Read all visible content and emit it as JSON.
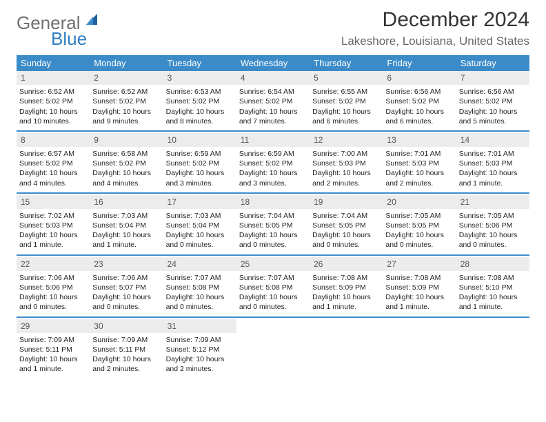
{
  "logo": {
    "text_gray": "General",
    "text_blue": "Blue"
  },
  "title": "December 2024",
  "location": "Lakeshore, Louisiana, United States",
  "colors": {
    "header_bar": "#3b8bc9",
    "header_text": "#ffffff",
    "daynum_bg": "#ececec",
    "daynum_text": "#555555",
    "body_text": "#222222",
    "title_text": "#333333",
    "location_text": "#666666",
    "logo_gray": "#6f6f6f",
    "logo_blue": "#2f7fc2"
  },
  "day_headers": [
    "Sunday",
    "Monday",
    "Tuesday",
    "Wednesday",
    "Thursday",
    "Friday",
    "Saturday"
  ],
  "weeks": [
    [
      {
        "n": "1",
        "sr": "Sunrise: 6:52 AM",
        "ss": "Sunset: 5:02 PM",
        "d1": "Daylight: 10 hours",
        "d2": "and 10 minutes."
      },
      {
        "n": "2",
        "sr": "Sunrise: 6:52 AM",
        "ss": "Sunset: 5:02 PM",
        "d1": "Daylight: 10 hours",
        "d2": "and 9 minutes."
      },
      {
        "n": "3",
        "sr": "Sunrise: 6:53 AM",
        "ss": "Sunset: 5:02 PM",
        "d1": "Daylight: 10 hours",
        "d2": "and 8 minutes."
      },
      {
        "n": "4",
        "sr": "Sunrise: 6:54 AM",
        "ss": "Sunset: 5:02 PM",
        "d1": "Daylight: 10 hours",
        "d2": "and 7 minutes."
      },
      {
        "n": "5",
        "sr": "Sunrise: 6:55 AM",
        "ss": "Sunset: 5:02 PM",
        "d1": "Daylight: 10 hours",
        "d2": "and 6 minutes."
      },
      {
        "n": "6",
        "sr": "Sunrise: 6:56 AM",
        "ss": "Sunset: 5:02 PM",
        "d1": "Daylight: 10 hours",
        "d2": "and 6 minutes."
      },
      {
        "n": "7",
        "sr": "Sunrise: 6:56 AM",
        "ss": "Sunset: 5:02 PM",
        "d1": "Daylight: 10 hours",
        "d2": "and 5 minutes."
      }
    ],
    [
      {
        "n": "8",
        "sr": "Sunrise: 6:57 AM",
        "ss": "Sunset: 5:02 PM",
        "d1": "Daylight: 10 hours",
        "d2": "and 4 minutes."
      },
      {
        "n": "9",
        "sr": "Sunrise: 6:58 AM",
        "ss": "Sunset: 5:02 PM",
        "d1": "Daylight: 10 hours",
        "d2": "and 4 minutes."
      },
      {
        "n": "10",
        "sr": "Sunrise: 6:59 AM",
        "ss": "Sunset: 5:02 PM",
        "d1": "Daylight: 10 hours",
        "d2": "and 3 minutes."
      },
      {
        "n": "11",
        "sr": "Sunrise: 6:59 AM",
        "ss": "Sunset: 5:02 PM",
        "d1": "Daylight: 10 hours",
        "d2": "and 3 minutes."
      },
      {
        "n": "12",
        "sr": "Sunrise: 7:00 AM",
        "ss": "Sunset: 5:03 PM",
        "d1": "Daylight: 10 hours",
        "d2": "and 2 minutes."
      },
      {
        "n": "13",
        "sr": "Sunrise: 7:01 AM",
        "ss": "Sunset: 5:03 PM",
        "d1": "Daylight: 10 hours",
        "d2": "and 2 minutes."
      },
      {
        "n": "14",
        "sr": "Sunrise: 7:01 AM",
        "ss": "Sunset: 5:03 PM",
        "d1": "Daylight: 10 hours",
        "d2": "and 1 minute."
      }
    ],
    [
      {
        "n": "15",
        "sr": "Sunrise: 7:02 AM",
        "ss": "Sunset: 5:03 PM",
        "d1": "Daylight: 10 hours",
        "d2": "and 1 minute."
      },
      {
        "n": "16",
        "sr": "Sunrise: 7:03 AM",
        "ss": "Sunset: 5:04 PM",
        "d1": "Daylight: 10 hours",
        "d2": "and 1 minute."
      },
      {
        "n": "17",
        "sr": "Sunrise: 7:03 AM",
        "ss": "Sunset: 5:04 PM",
        "d1": "Daylight: 10 hours",
        "d2": "and 0 minutes."
      },
      {
        "n": "18",
        "sr": "Sunrise: 7:04 AM",
        "ss": "Sunset: 5:05 PM",
        "d1": "Daylight: 10 hours",
        "d2": "and 0 minutes."
      },
      {
        "n": "19",
        "sr": "Sunrise: 7:04 AM",
        "ss": "Sunset: 5:05 PM",
        "d1": "Daylight: 10 hours",
        "d2": "and 0 minutes."
      },
      {
        "n": "20",
        "sr": "Sunrise: 7:05 AM",
        "ss": "Sunset: 5:05 PM",
        "d1": "Daylight: 10 hours",
        "d2": "and 0 minutes."
      },
      {
        "n": "21",
        "sr": "Sunrise: 7:05 AM",
        "ss": "Sunset: 5:06 PM",
        "d1": "Daylight: 10 hours",
        "d2": "and 0 minutes."
      }
    ],
    [
      {
        "n": "22",
        "sr": "Sunrise: 7:06 AM",
        "ss": "Sunset: 5:06 PM",
        "d1": "Daylight: 10 hours",
        "d2": "and 0 minutes."
      },
      {
        "n": "23",
        "sr": "Sunrise: 7:06 AM",
        "ss": "Sunset: 5:07 PM",
        "d1": "Daylight: 10 hours",
        "d2": "and 0 minutes."
      },
      {
        "n": "24",
        "sr": "Sunrise: 7:07 AM",
        "ss": "Sunset: 5:08 PM",
        "d1": "Daylight: 10 hours",
        "d2": "and 0 minutes."
      },
      {
        "n": "25",
        "sr": "Sunrise: 7:07 AM",
        "ss": "Sunset: 5:08 PM",
        "d1": "Daylight: 10 hours",
        "d2": "and 0 minutes."
      },
      {
        "n": "26",
        "sr": "Sunrise: 7:08 AM",
        "ss": "Sunset: 5:09 PM",
        "d1": "Daylight: 10 hours",
        "d2": "and 1 minute."
      },
      {
        "n": "27",
        "sr": "Sunrise: 7:08 AM",
        "ss": "Sunset: 5:09 PM",
        "d1": "Daylight: 10 hours",
        "d2": "and 1 minute."
      },
      {
        "n": "28",
        "sr": "Sunrise: 7:08 AM",
        "ss": "Sunset: 5:10 PM",
        "d1": "Daylight: 10 hours",
        "d2": "and 1 minute."
      }
    ],
    [
      {
        "n": "29",
        "sr": "Sunrise: 7:09 AM",
        "ss": "Sunset: 5:11 PM",
        "d1": "Daylight: 10 hours",
        "d2": "and 1 minute."
      },
      {
        "n": "30",
        "sr": "Sunrise: 7:09 AM",
        "ss": "Sunset: 5:11 PM",
        "d1": "Daylight: 10 hours",
        "d2": "and 2 minutes."
      },
      {
        "n": "31",
        "sr": "Sunrise: 7:09 AM",
        "ss": "Sunset: 5:12 PM",
        "d1": "Daylight: 10 hours",
        "d2": "and 2 minutes."
      },
      null,
      null,
      null,
      null
    ]
  ]
}
